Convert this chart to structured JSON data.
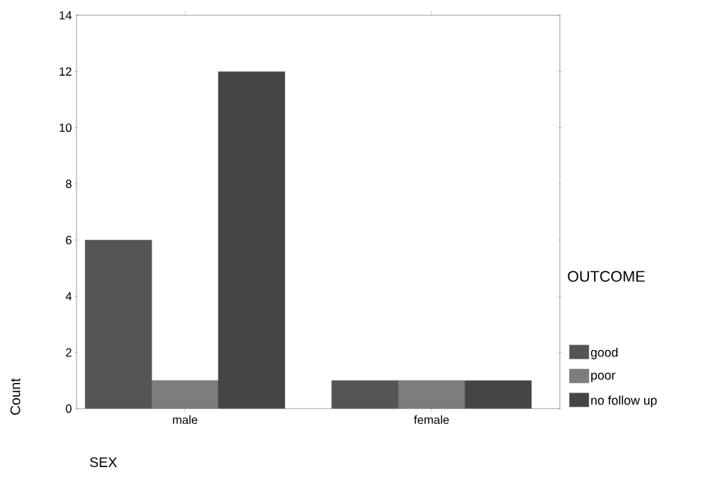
{
  "chart_data": {
    "type": "bar",
    "xlabel": "SEX",
    "ylabel": "Count",
    "legend_title": "OUTCOME",
    "categories": [
      "male",
      "female"
    ],
    "series": [
      {
        "name": "good",
        "color": "#555555",
        "values": [
          6,
          1
        ]
      },
      {
        "name": "poor",
        "color": "#7d7d7d",
        "values": [
          1,
          1
        ]
      },
      {
        "name": "no follow up",
        "color": "#454545",
        "values": [
          12,
          1
        ]
      }
    ],
    "ylim": [
      0,
      14
    ],
    "yticks": [
      0,
      2,
      4,
      6,
      8,
      10,
      12,
      14
    ],
    "grid": false,
    "legend": "right"
  }
}
